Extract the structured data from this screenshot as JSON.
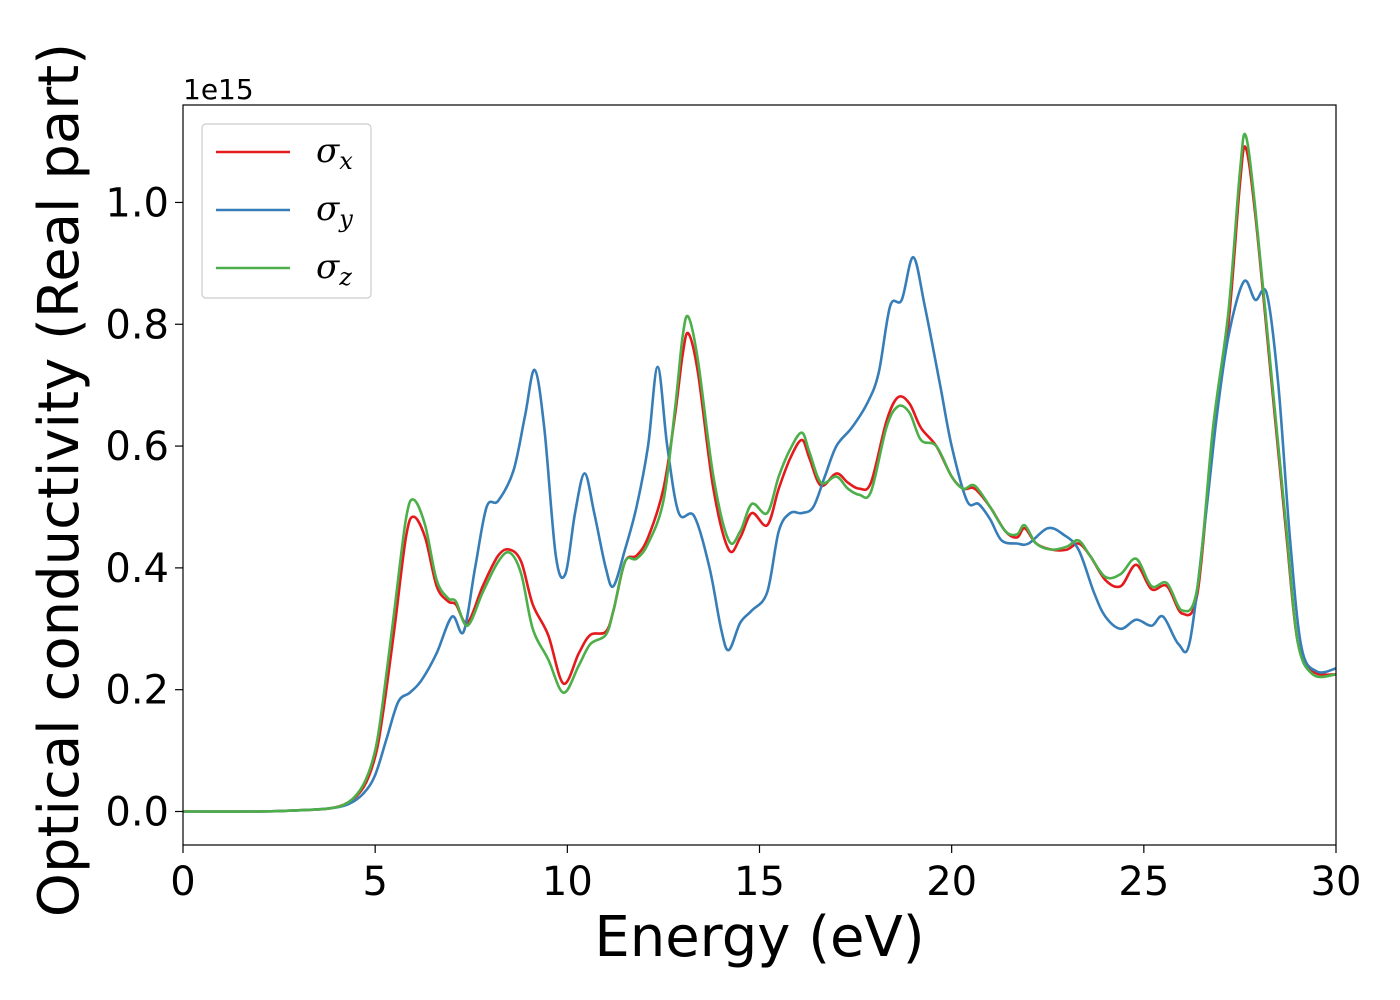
{
  "chart_data": {
    "type": "line",
    "xlabel": "Energy (eV)",
    "ylabel": "Optical conductivity (Real part)",
    "y_offset_text": "1e15",
    "xlim": [
      0,
      30
    ],
    "ylim": [
      -0.055,
      1.16
    ],
    "x_ticks": [
      0,
      5,
      10,
      15,
      20,
      25,
      30
    ],
    "x_tick_labels": [
      "0",
      "5",
      "10",
      "15",
      "20",
      "25",
      "30"
    ],
    "y_ticks": [
      0.0,
      0.2,
      0.4,
      0.6,
      0.8,
      1.0
    ],
    "y_tick_labels": [
      "0.0",
      "0.2",
      "0.4",
      "0.6",
      "0.8",
      "1.0"
    ],
    "grid": false,
    "legend_position": "top-left",
    "series": [
      {
        "name": "σx",
        "legend_symbol": "σ",
        "legend_sub": "x",
        "color": "#e41a1c",
        "points": [
          [
            0,
            0
          ],
          [
            2,
            0
          ],
          [
            3,
            0.002
          ],
          [
            3.8,
            0.005
          ],
          [
            4.3,
            0.015
          ],
          [
            4.7,
            0.04
          ],
          [
            5.0,
            0.09
          ],
          [
            5.2,
            0.16
          ],
          [
            5.5,
            0.3
          ],
          [
            5.8,
            0.45
          ],
          [
            6.0,
            0.484
          ],
          [
            6.3,
            0.45
          ],
          [
            6.6,
            0.37
          ],
          [
            6.9,
            0.345
          ],
          [
            7.1,
            0.34
          ],
          [
            7.4,
            0.31
          ],
          [
            7.8,
            0.37
          ],
          [
            8.2,
            0.42
          ],
          [
            8.5,
            0.43
          ],
          [
            8.8,
            0.41
          ],
          [
            9.1,
            0.34
          ],
          [
            9.5,
            0.29
          ],
          [
            9.9,
            0.21
          ],
          [
            10.3,
            0.26
          ],
          [
            10.6,
            0.29
          ],
          [
            11.0,
            0.295
          ],
          [
            11.2,
            0.33
          ],
          [
            11.5,
            0.41
          ],
          [
            11.8,
            0.42
          ],
          [
            12.1,
            0.45
          ],
          [
            12.5,
            0.53
          ],
          [
            12.8,
            0.65
          ],
          [
            13.0,
            0.75
          ],
          [
            13.15,
            0.785
          ],
          [
            13.4,
            0.72
          ],
          [
            13.8,
            0.53
          ],
          [
            14.2,
            0.43
          ],
          [
            14.5,
            0.45
          ],
          [
            14.8,
            0.49
          ],
          [
            15.2,
            0.47
          ],
          [
            15.5,
            0.53
          ],
          [
            15.8,
            0.58
          ],
          [
            16.1,
            0.61
          ],
          [
            16.3,
            0.58
          ],
          [
            16.6,
            0.535
          ],
          [
            17.0,
            0.555
          ],
          [
            17.3,
            0.54
          ],
          [
            17.6,
            0.53
          ],
          [
            17.9,
            0.54
          ],
          [
            18.3,
            0.64
          ],
          [
            18.6,
            0.68
          ],
          [
            18.9,
            0.67
          ],
          [
            19.2,
            0.63
          ],
          [
            19.6,
            0.6
          ],
          [
            20.0,
            0.55
          ],
          [
            20.3,
            0.53
          ],
          [
            20.6,
            0.53
          ],
          [
            21.0,
            0.5
          ],
          [
            21.4,
            0.46
          ],
          [
            21.7,
            0.45
          ],
          [
            21.9,
            0.465
          ],
          [
            22.2,
            0.44
          ],
          [
            22.6,
            0.43
          ],
          [
            23.0,
            0.43
          ],
          [
            23.3,
            0.44
          ],
          [
            23.6,
            0.42
          ],
          [
            24.0,
            0.38
          ],
          [
            24.4,
            0.37
          ],
          [
            24.8,
            0.405
          ],
          [
            25.2,
            0.365
          ],
          [
            25.6,
            0.37
          ],
          [
            26.0,
            0.325
          ],
          [
            26.4,
            0.36
          ],
          [
            26.8,
            0.62
          ],
          [
            27.2,
            0.8
          ],
          [
            27.5,
            1.03
          ],
          [
            27.65,
            1.09
          ],
          [
            27.9,
            0.98
          ],
          [
            28.3,
            0.72
          ],
          [
            28.7,
            0.46
          ],
          [
            29.0,
            0.28
          ],
          [
            29.4,
            0.23
          ],
          [
            30,
            0.225
          ]
        ]
      },
      {
        "name": "σy",
        "legend_symbol": "σ",
        "legend_sub": "y",
        "color": "#377eb8",
        "points": [
          [
            0,
            0
          ],
          [
            2,
            0
          ],
          [
            3,
            0.002
          ],
          [
            3.8,
            0.005
          ],
          [
            4.3,
            0.012
          ],
          [
            4.7,
            0.03
          ],
          [
            5.0,
            0.06
          ],
          [
            5.3,
            0.12
          ],
          [
            5.6,
            0.18
          ],
          [
            5.9,
            0.195
          ],
          [
            6.2,
            0.215
          ],
          [
            6.6,
            0.26
          ],
          [
            7.0,
            0.32
          ],
          [
            7.3,
            0.295
          ],
          [
            7.6,
            0.4
          ],
          [
            7.9,
            0.5
          ],
          [
            8.2,
            0.51
          ],
          [
            8.6,
            0.56
          ],
          [
            8.9,
            0.65
          ],
          [
            9.15,
            0.725
          ],
          [
            9.4,
            0.63
          ],
          [
            9.7,
            0.42
          ],
          [
            9.95,
            0.39
          ],
          [
            10.2,
            0.49
          ],
          [
            10.45,
            0.555
          ],
          [
            10.7,
            0.49
          ],
          [
            11.0,
            0.4
          ],
          [
            11.2,
            0.37
          ],
          [
            11.5,
            0.43
          ],
          [
            11.8,
            0.5
          ],
          [
            12.1,
            0.6
          ],
          [
            12.35,
            0.73
          ],
          [
            12.6,
            0.6
          ],
          [
            12.9,
            0.49
          ],
          [
            13.3,
            0.485
          ],
          [
            13.7,
            0.4
          ],
          [
            14.0,
            0.3
          ],
          [
            14.2,
            0.265
          ],
          [
            14.5,
            0.31
          ],
          [
            14.8,
            0.33
          ],
          [
            15.2,
            0.36
          ],
          [
            15.5,
            0.46
          ],
          [
            15.8,
            0.49
          ],
          [
            16.1,
            0.49
          ],
          [
            16.4,
            0.5
          ],
          [
            16.7,
            0.55
          ],
          [
            17.0,
            0.6
          ],
          [
            17.4,
            0.63
          ],
          [
            17.8,
            0.67
          ],
          [
            18.1,
            0.72
          ],
          [
            18.4,
            0.83
          ],
          [
            18.7,
            0.84
          ],
          [
            19.0,
            0.91
          ],
          [
            19.3,
            0.83
          ],
          [
            19.7,
            0.7
          ],
          [
            20.0,
            0.6
          ],
          [
            20.4,
            0.51
          ],
          [
            20.7,
            0.505
          ],
          [
            21.0,
            0.48
          ],
          [
            21.3,
            0.445
          ],
          [
            21.7,
            0.44
          ],
          [
            22.0,
            0.44
          ],
          [
            22.5,
            0.465
          ],
          [
            22.9,
            0.455
          ],
          [
            23.3,
            0.43
          ],
          [
            23.7,
            0.36
          ],
          [
            24.0,
            0.32
          ],
          [
            24.4,
            0.3
          ],
          [
            24.8,
            0.315
          ],
          [
            25.2,
            0.305
          ],
          [
            25.5,
            0.32
          ],
          [
            25.9,
            0.275
          ],
          [
            26.2,
            0.28
          ],
          [
            26.6,
            0.48
          ],
          [
            26.9,
            0.65
          ],
          [
            27.2,
            0.78
          ],
          [
            27.6,
            0.87
          ],
          [
            27.9,
            0.84
          ],
          [
            28.2,
            0.85
          ],
          [
            28.5,
            0.7
          ],
          [
            28.8,
            0.45
          ],
          [
            29.1,
            0.27
          ],
          [
            29.5,
            0.23
          ],
          [
            30,
            0.235
          ]
        ]
      },
      {
        "name": "σz",
        "legend_symbol": "σ",
        "legend_sub": "z",
        "color": "#4daf4a",
        "points": [
          [
            0,
            0
          ],
          [
            2,
            0
          ],
          [
            3,
            0.002
          ],
          [
            3.8,
            0.005
          ],
          [
            4.3,
            0.015
          ],
          [
            4.7,
            0.045
          ],
          [
            5.0,
            0.1
          ],
          [
            5.2,
            0.18
          ],
          [
            5.5,
            0.33
          ],
          [
            5.8,
            0.48
          ],
          [
            6.0,
            0.512
          ],
          [
            6.3,
            0.47
          ],
          [
            6.6,
            0.38
          ],
          [
            6.9,
            0.35
          ],
          [
            7.1,
            0.345
          ],
          [
            7.4,
            0.305
          ],
          [
            7.8,
            0.36
          ],
          [
            8.2,
            0.41
          ],
          [
            8.5,
            0.425
          ],
          [
            8.8,
            0.39
          ],
          [
            9.1,
            0.3
          ],
          [
            9.5,
            0.25
          ],
          [
            9.9,
            0.195
          ],
          [
            10.3,
            0.24
          ],
          [
            10.6,
            0.275
          ],
          [
            11.0,
            0.29
          ],
          [
            11.2,
            0.33
          ],
          [
            11.5,
            0.41
          ],
          [
            11.8,
            0.415
          ],
          [
            12.1,
            0.44
          ],
          [
            12.5,
            0.51
          ],
          [
            12.8,
            0.66
          ],
          [
            13.0,
            0.78
          ],
          [
            13.15,
            0.812
          ],
          [
            13.4,
            0.74
          ],
          [
            13.8,
            0.55
          ],
          [
            14.2,
            0.445
          ],
          [
            14.5,
            0.46
          ],
          [
            14.8,
            0.505
          ],
          [
            15.2,
            0.49
          ],
          [
            15.5,
            0.55
          ],
          [
            15.8,
            0.595
          ],
          [
            16.1,
            0.622
          ],
          [
            16.3,
            0.59
          ],
          [
            16.6,
            0.54
          ],
          [
            17.0,
            0.55
          ],
          [
            17.3,
            0.53
          ],
          [
            17.6,
            0.52
          ],
          [
            17.9,
            0.525
          ],
          [
            18.3,
            0.63
          ],
          [
            18.6,
            0.665
          ],
          [
            18.9,
            0.655
          ],
          [
            19.2,
            0.61
          ],
          [
            19.6,
            0.6
          ],
          [
            20.0,
            0.55
          ],
          [
            20.3,
            0.53
          ],
          [
            20.6,
            0.535
          ],
          [
            21.0,
            0.5
          ],
          [
            21.4,
            0.46
          ],
          [
            21.7,
            0.455
          ],
          [
            21.9,
            0.47
          ],
          [
            22.2,
            0.44
          ],
          [
            22.6,
            0.43
          ],
          [
            23.0,
            0.435
          ],
          [
            23.3,
            0.445
          ],
          [
            23.6,
            0.42
          ],
          [
            24.0,
            0.385
          ],
          [
            24.4,
            0.39
          ],
          [
            24.8,
            0.415
          ],
          [
            25.2,
            0.37
          ],
          [
            25.6,
            0.375
          ],
          [
            26.0,
            0.33
          ],
          [
            26.4,
            0.37
          ],
          [
            26.8,
            0.63
          ],
          [
            27.2,
            0.82
          ],
          [
            27.5,
            1.05
          ],
          [
            27.65,
            1.11
          ],
          [
            27.9,
            0.99
          ],
          [
            28.3,
            0.73
          ],
          [
            28.7,
            0.47
          ],
          [
            29.0,
            0.28
          ],
          [
            29.4,
            0.225
          ],
          [
            30,
            0.225
          ]
        ]
      }
    ]
  }
}
